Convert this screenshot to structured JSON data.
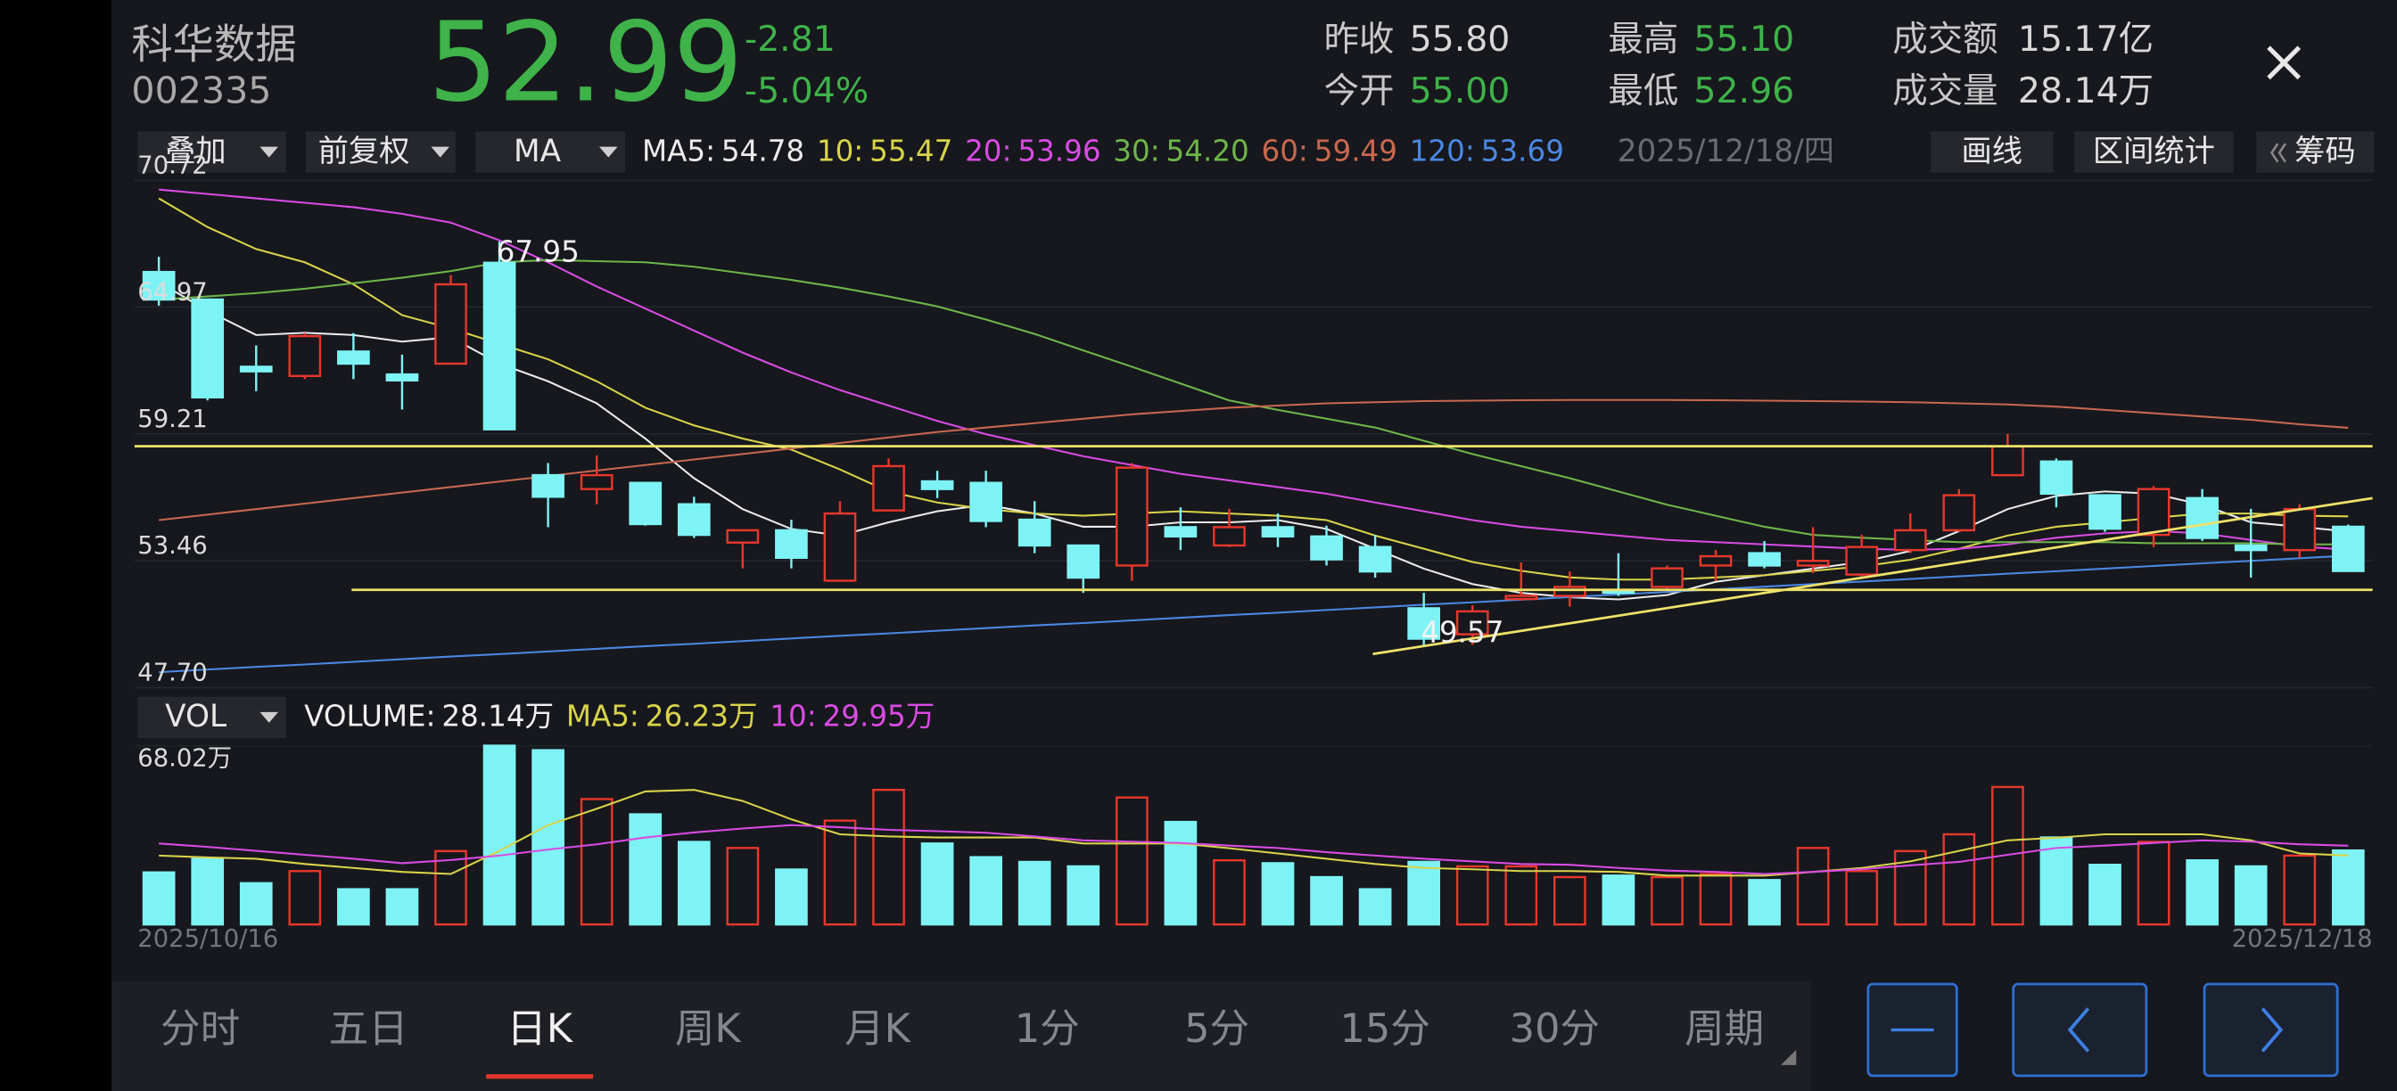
{
  "header": {
    "name": "科华数据",
    "code": "002335",
    "price": "52.99",
    "change": "-2.81",
    "change_pct": "-5.04%",
    "color": "#3fb24a"
  },
  "stats": [
    {
      "label": "昨收",
      "value": "55.80",
      "color": "#d8d8d8"
    },
    {
      "label": "今开",
      "value": "55.00",
      "color": "#3fb24a"
    },
    {
      "label": "最高",
      "value": "55.10",
      "color": "#3fb24a"
    },
    {
      "label": "最低",
      "value": "52.96",
      "color": "#3fb24a"
    },
    {
      "label": "成交额",
      "value": "15.17亿",
      "color": "#d8d8d8"
    },
    {
      "label": "成交量",
      "value": "28.14万",
      "color": "#d8d8d8"
    }
  ],
  "toolbar": {
    "overlay": "叠加",
    "adjust": "前复权",
    "indicator": "MA",
    "date": "2025/12/18/四",
    "draw": "画线",
    "range_stats": "区间统计",
    "chips": "筹码"
  },
  "chart_data": [
    {
      "type": "candlestick",
      "up_color": "#e8372c",
      "down_color": "#7ef3f5",
      "ylim": [
        47.7,
        70.72
      ],
      "yticks": [
        {
          "value": 47.7,
          "label": "47.70"
        },
        53.46,
        59.21,
        64.97,
        70.72
      ],
      "grid": true,
      "open": [
        66.56,
        65.31,
        62.26,
        61.84,
        62.95,
        61.91,
        62.4,
        66.98,
        57.34,
        56.71,
        56.99,
        56.02,
        54.28,
        54.84,
        52.55,
        55.74,
        57.06,
        56.99,
        55.32,
        54.15,
        53.24,
        54.98,
        54.15,
        54.98,
        54.56,
        54.08,
        51.3,
        50.12,
        51.72,
        51.86,
        52.13,
        52.27,
        53.24,
        53.8,
        53.24,
        52.83,
        53.94,
        54.84,
        57.34,
        57.96,
        56.43,
        54.63,
        56.3,
        54.15,
        53.94,
        55.0
      ],
      "high": [
        67.25,
        65.31,
        63.23,
        63.79,
        63.79,
        62.81,
        66.42,
        67.95,
        57.89,
        58.24,
        56.99,
        56.36,
        54.84,
        55.32,
        56.16,
        58.1,
        57.54,
        57.54,
        56.16,
        54.15,
        57.89,
        55.88,
        55.81,
        55.6,
        55.05,
        54.63,
        52.0,
        51.44,
        53.38,
        52.97,
        53.8,
        53.24,
        53.94,
        54.35,
        54.98,
        54.63,
        55.6,
        56.71,
        59.21,
        58.1,
        56.43,
        56.85,
        56.71,
        55.81,
        56.02,
        55.1
      ],
      "low": [
        65.03,
        60.73,
        61.15,
        61.7,
        61.7,
        60.32,
        62.4,
        59.42,
        54.98,
        56.02,
        55.05,
        54.49,
        53.11,
        53.11,
        52.55,
        55.74,
        56.3,
        54.98,
        53.8,
        52.0,
        52.55,
        53.94,
        54.08,
        54.08,
        53.24,
        52.69,
        49.57,
        49.64,
        51.65,
        51.37,
        51.86,
        52.13,
        52.55,
        53.11,
        52.9,
        52.69,
        53.8,
        54.77,
        57.34,
        55.88,
        54.77,
        54.08,
        54.35,
        52.69,
        53.59,
        52.96
      ],
      "close": [
        65.31,
        60.87,
        62.05,
        63.65,
        62.4,
        61.64,
        66.0,
        59.42,
        56.36,
        57.34,
        55.12,
        54.63,
        54.84,
        53.59,
        55.6,
        57.75,
        56.71,
        55.26,
        54.15,
        52.69,
        57.68,
        54.56,
        54.98,
        54.56,
        53.52,
        52.97,
        49.92,
        51.16,
        51.86,
        52.27,
        52.0,
        53.11,
        53.66,
        53.24,
        53.45,
        54.08,
        54.84,
        56.43,
        58.65,
        56.5,
        54.91,
        56.71,
        54.49,
        53.94,
        55.8,
        52.99
      ],
      "series": [
        {
          "name": "MA5:",
          "legend_value": "54.78",
          "color": "#ececec",
          "values": [
            66.1,
            64.8,
            63.7,
            63.8,
            63.7,
            63.4,
            63.6,
            62.4,
            61.6,
            60.6,
            59.0,
            57.2,
            55.8,
            54.9,
            54.6,
            55.2,
            55.7,
            56.0,
            55.6,
            55.0,
            55.0,
            55.2,
            55.2,
            55.3,
            54.9,
            54.0,
            53.1,
            52.4,
            52.0,
            51.8,
            51.7,
            51.9,
            52.5,
            52.8,
            53.1,
            53.4,
            53.9,
            54.8,
            55.8,
            56.4,
            56.6,
            56.5,
            56.0,
            55.2,
            55.0,
            54.78
          ]
        },
        {
          "name": "10:",
          "legend_value": "55.47",
          "color": "#d9d34b",
          "values": [
            69.9,
            68.6,
            67.6,
            67.0,
            66.0,
            64.6,
            64.0,
            63.3,
            62.6,
            61.6,
            60.4,
            59.6,
            59.0,
            58.5,
            57.6,
            56.6,
            56.1,
            55.8,
            55.6,
            55.5,
            55.6,
            55.7,
            55.6,
            55.5,
            55.3,
            54.6,
            54.0,
            53.4,
            53.0,
            52.7,
            52.6,
            52.6,
            52.7,
            52.8,
            53.0,
            53.2,
            53.5,
            54.0,
            54.6,
            55.0,
            55.2,
            55.4,
            55.6,
            55.6,
            55.5,
            55.47
          ]
        },
        {
          "name": "20:",
          "legend_value": "53.96",
          "color": "#d94be3",
          "values": [
            70.3,
            70.1,
            69.9,
            69.7,
            69.5,
            69.2,
            68.8,
            68.0,
            67.0,
            65.9,
            64.9,
            63.9,
            62.9,
            62.0,
            61.2,
            60.5,
            59.8,
            59.2,
            58.7,
            58.2,
            57.8,
            57.4,
            57.1,
            56.8,
            56.5,
            56.1,
            55.7,
            55.3,
            55.0,
            54.8,
            54.6,
            54.4,
            54.3,
            54.2,
            54.1,
            54.0,
            53.95,
            54.0,
            54.2,
            54.5,
            54.7,
            54.8,
            54.7,
            54.4,
            54.1,
            53.96
          ]
        },
        {
          "name": "30:",
          "legend_value": "54.20",
          "color": "#6fb54a",
          "values": [
            65.3,
            65.45,
            65.6,
            65.8,
            66.05,
            66.3,
            66.6,
            67.0,
            67.1,
            67.05,
            67.0,
            66.8,
            66.5,
            66.2,
            65.85,
            65.45,
            65.0,
            64.4,
            63.75,
            63.0,
            62.26,
            61.5,
            60.73,
            60.3,
            59.9,
            59.5,
            58.9,
            58.3,
            57.75,
            57.2,
            56.6,
            56.0,
            55.5,
            55.0,
            54.63,
            54.5,
            54.4,
            54.3,
            54.3,
            54.3,
            54.3,
            54.25,
            54.25,
            54.25,
            54.2,
            54.2
          ]
        },
        {
          "name": "60:",
          "legend_value": "59.49",
          "color": "#c8684f",
          "values": [
            55.3,
            55.55,
            55.8,
            56.05,
            56.3,
            56.55,
            56.8,
            57.05,
            57.3,
            57.55,
            57.8,
            58.05,
            58.3,
            58.55,
            58.8,
            59.05,
            59.3,
            59.5,
            59.7,
            59.9,
            60.1,
            60.25,
            60.4,
            60.5,
            60.6,
            60.65,
            60.7,
            60.72,
            60.74,
            60.75,
            60.75,
            60.75,
            60.74,
            60.72,
            60.7,
            60.68,
            60.65,
            60.6,
            60.55,
            60.45,
            60.3,
            60.15,
            60.0,
            59.85,
            59.65,
            59.49
          ]
        },
        {
          "name": "120:",
          "legend_value": "53.69",
          "color": "#4a88e3",
          "values": [
            48.4,
            48.52,
            48.64,
            48.75,
            48.87,
            48.99,
            49.11,
            49.22,
            49.34,
            49.46,
            49.58,
            49.69,
            49.81,
            49.93,
            50.05,
            50.16,
            50.28,
            50.4,
            50.52,
            50.63,
            50.75,
            50.87,
            50.99,
            51.1,
            51.22,
            51.34,
            51.46,
            51.57,
            51.69,
            51.81,
            51.93,
            52.04,
            52.16,
            52.28,
            52.4,
            52.51,
            52.63,
            52.75,
            52.87,
            52.98,
            53.1,
            53.22,
            53.34,
            53.45,
            53.57,
            53.69
          ]
        }
      ]
    },
    {
      "type": "volume",
      "indicator": "VOL",
      "name": "VOLUME:",
      "legend_value": "28.14万",
      "color": "#f0f0f0",
      "categories": [
        "2025/10/16",
        null,
        null,
        null,
        null,
        null,
        null,
        null,
        null,
        null,
        null,
        null,
        null,
        null,
        null,
        null,
        null,
        null,
        null,
        null,
        null,
        null,
        null,
        null,
        null,
        null,
        null,
        null,
        null,
        null,
        null,
        null,
        null,
        null,
        null,
        null,
        null,
        null,
        null,
        null,
        null,
        null,
        null,
        null,
        null,
        "2025/12/18"
      ],
      "values": [
        19.8,
        25.0,
        15.7,
        20.3,
        13.4,
        13.4,
        27.9,
        68.02,
        66.3,
        47.7,
        41.9,
        31.4,
        29.1,
        20.9,
        39.5,
        51.2,
        30.8,
        25.6,
        23.8,
        22.1,
        48.3,
        39.0,
        24.4,
        23.3,
        18.0,
        13.4,
        23.8,
        22.1,
        22.1,
        18.0,
        18.6,
        18.0,
        19.2,
        16.9,
        29.1,
        20.3,
        27.9,
        34.3,
        52.3,
        33.1,
        22.7,
        31.4,
        24.4,
        22.1,
        26.2,
        28.14
      ],
      "ylim": [
        0,
        68.02
      ],
      "yticks": [
        {
          "value": 68.02,
          "label": "68.02万"
        }
      ],
      "series": [
        {
          "name": "MA5:",
          "legend_value": "26.23万",
          "color": "#d9d34b",
          "values": [
            26.2,
            25.5,
            25.0,
            23.0,
            21.5,
            20.0,
            19.2,
            28.0,
            37.8,
            44.0,
            50.6,
            51.2,
            47.0,
            40.0,
            34.3,
            33.5,
            33.1,
            33.1,
            33.1,
            30.8,
            30.8,
            30.8,
            29.0,
            27.0,
            25.0,
            23.0,
            21.5,
            21.0,
            20.3,
            20.3,
            20.0,
            18.6,
            18.6,
            18.6,
            20.0,
            21.5,
            24.0,
            28.0,
            32.0,
            33.0,
            34.3,
            34.3,
            34.3,
            32.0,
            27.0,
            26.23
          ]
        },
        {
          "name": "10:",
          "legend_value": "29.95万",
          "color": "#d94be3",
          "values": [
            30.8,
            29.5,
            28.0,
            26.5,
            25.0,
            23.3,
            24.5,
            26.2,
            28.5,
            30.5,
            33.1,
            35.0,
            36.5,
            37.8,
            37.0,
            36.0,
            35.5,
            34.9,
            33.5,
            32.0,
            31.5,
            31.0,
            30.0,
            29.1,
            27.5,
            26.2,
            25.0,
            24.0,
            23.0,
            22.7,
            21.5,
            20.5,
            20.0,
            19.2,
            20.0,
            21.0,
            22.5,
            23.8,
            26.5,
            29.1,
            30.0,
            31.0,
            32.0,
            31.5,
            30.5,
            29.95
          ]
        }
      ]
    }
  ],
  "tabs": [
    "分时",
    "五日",
    "日K",
    "周K",
    "月K",
    "1分",
    "5分",
    "15分",
    "30分",
    "周期"
  ],
  "active_tab": 2
}
